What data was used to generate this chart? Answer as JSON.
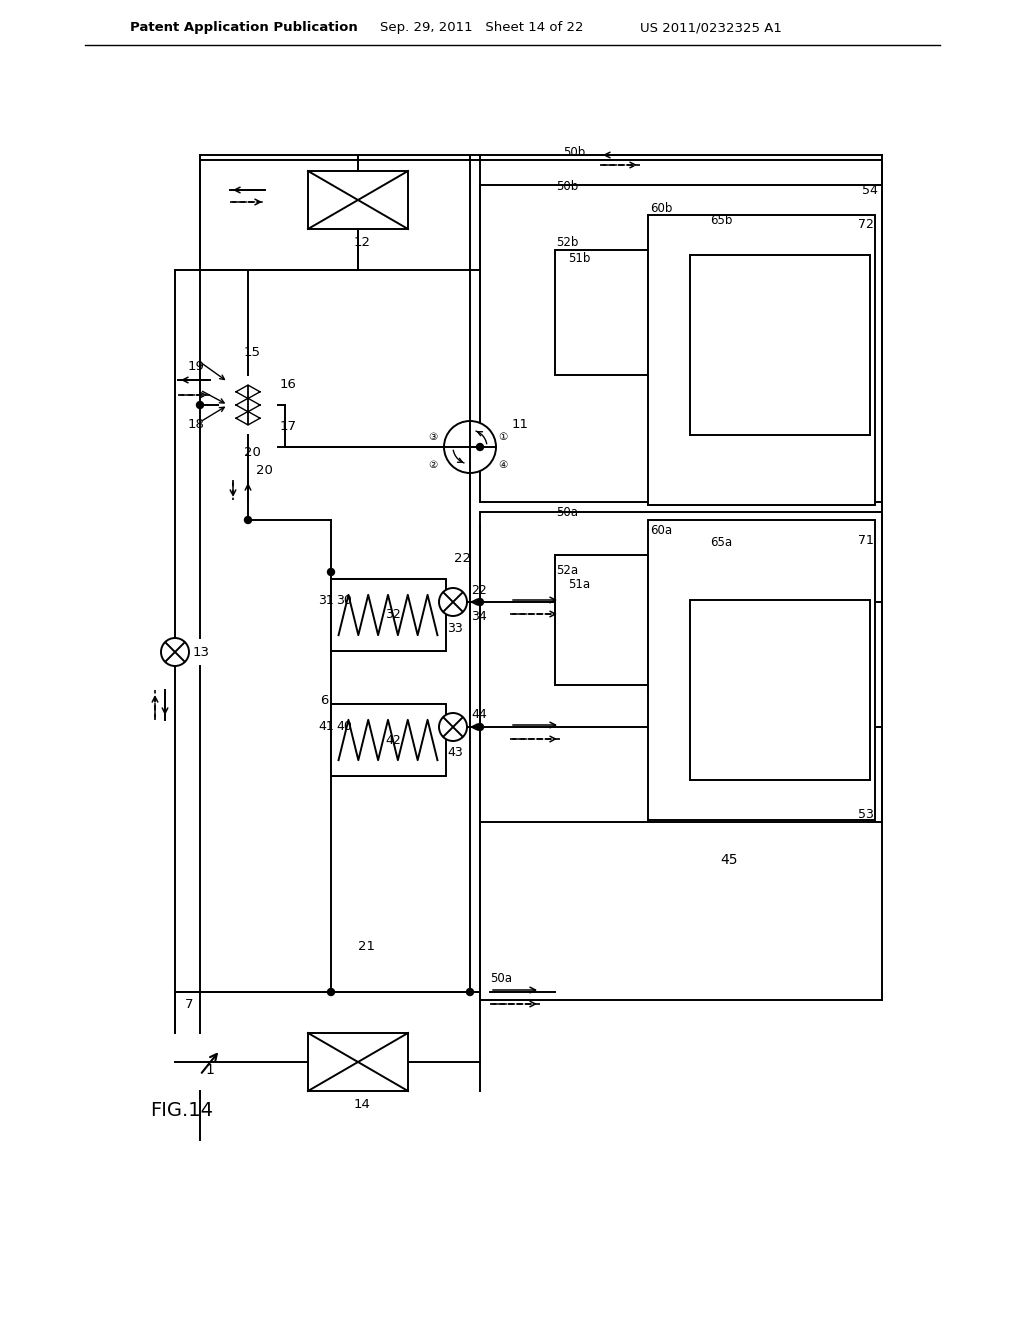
{
  "bg_color": "#ffffff",
  "header_pub": "Patent Application Publication",
  "header_date": "Sep. 29, 2011",
  "header_sheet": "Sheet 14 of 22",
  "header_patent": "US 2011/0232325 A1",
  "fig_label": "FIG.14"
}
